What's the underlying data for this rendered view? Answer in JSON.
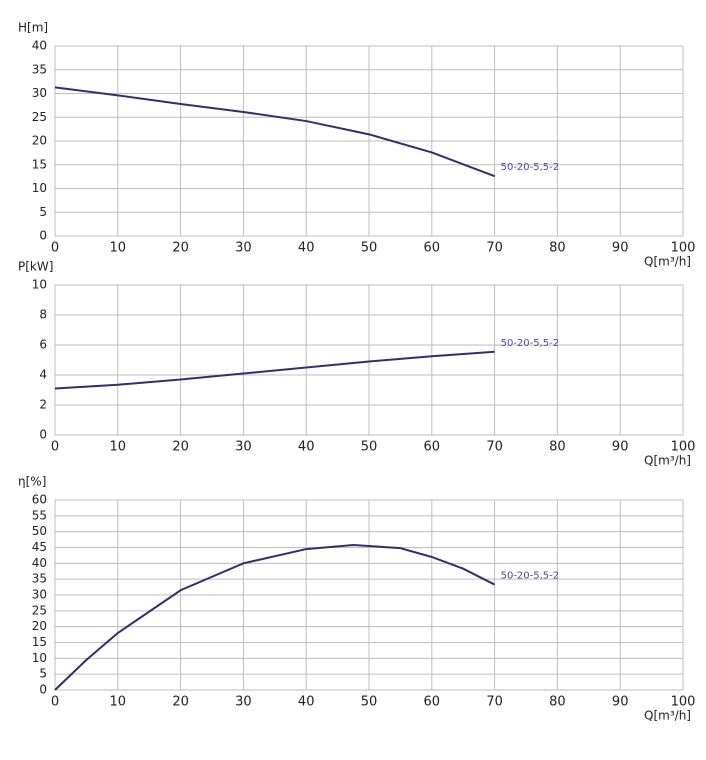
{
  "chart_data": [
    {
      "type": "line",
      "y_label": "H[m]",
      "x_label": "Q[m³/h]",
      "x": [
        0,
        10,
        20,
        30,
        40,
        50,
        60,
        70
      ],
      "series": [
        {
          "name": "50-20-5,5-2",
          "color": "#2e3171",
          "values": [
            31.3,
            29.6,
            27.8,
            26.1,
            24.2,
            21.4,
            17.6,
            12.6
          ]
        }
      ],
      "xlim": [
        0,
        100
      ],
      "xticks": [
        0,
        10,
        20,
        30,
        40,
        50,
        60,
        70,
        80,
        90,
        100
      ],
      "ylim": [
        0,
        40
      ],
      "yticks": [
        0,
        5,
        10,
        15,
        20,
        25,
        30,
        35,
        40
      ],
      "grid": true
    },
    {
      "type": "line",
      "y_label": "P[kW]",
      "x_label": "Q[m³/h]",
      "x": [
        0,
        10,
        20,
        30,
        40,
        50,
        60,
        70
      ],
      "series": [
        {
          "name": "50-20-5,5-2",
          "color": "#2e3171",
          "values": [
            3.1,
            3.35,
            3.7,
            4.1,
            4.5,
            4.9,
            5.25,
            5.55
          ]
        }
      ],
      "xlim": [
        0,
        100
      ],
      "xticks": [
        0,
        10,
        20,
        30,
        40,
        50,
        60,
        70,
        80,
        90,
        100
      ],
      "ylim": [
        0,
        10
      ],
      "yticks": [
        0,
        2,
        4,
        6,
        8,
        10
      ],
      "grid": true
    },
    {
      "type": "line",
      "y_label": "η[%]",
      "x_label": "Q[m³/h]",
      "x": [
        0,
        5,
        10,
        20,
        30,
        40,
        47.5,
        55,
        60,
        65,
        70
      ],
      "series": [
        {
          "name": "50-20-5,5-2",
          "color": "#2e3171",
          "values": [
            0,
            9.5,
            18,
            31.5,
            40,
            44.5,
            45.8,
            44.8,
            42,
            38.3,
            33.3
          ]
        }
      ],
      "xlim": [
        0,
        100
      ],
      "xticks": [
        0,
        10,
        20,
        30,
        40,
        50,
        60,
        70,
        80,
        90,
        100
      ],
      "ylim": [
        0,
        60
      ],
      "yticks": [
        0,
        5,
        10,
        15,
        20,
        25,
        30,
        35,
        40,
        45,
        50,
        55,
        60
      ],
      "grid": true
    }
  ]
}
